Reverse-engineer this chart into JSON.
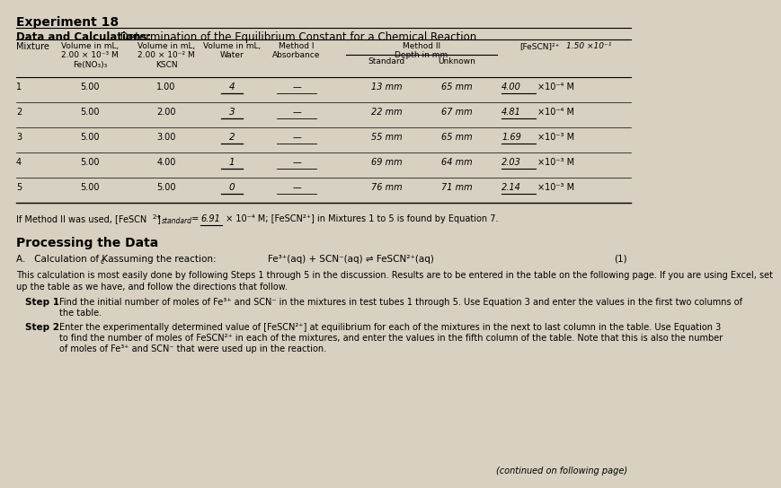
{
  "bg_color": "#d8d0c0",
  "title_exp": "Experiment 18",
  "title_bold": "Data and Calculations:",
  "title_rest": " Determination of the Equilibrium Constant for a Chemical Reaction",
  "col_headers": [
    "Mixture",
    "Volume in mL,\n2.00 × 10⁻³ M\nFe(NO₃)₃",
    "Volume in mL,\n2.00 × 10⁻² M\nKSCN",
    "Volume in mL,\nWater",
    "Method I\nAbsorbance",
    "Standard",
    "Unknown",
    "[FeSCN]²⁺"
  ],
  "method2_header": "Method II\nDepth in mm",
  "method2_note": "1.50 ×10⁻¹",
  "rows": [
    [
      "1",
      "5.00",
      "1.00",
      "4",
      "",
      "13 mm",
      "65 mm",
      "4.00",
      "×10⁻⁴ M"
    ],
    [
      "2",
      "5.00",
      "2.00",
      "3",
      "",
      "22 mm",
      "67 mm",
      "4.81",
      "×10⁻⁴ M"
    ],
    [
      "3",
      "5.00",
      "3.00",
      "2",
      "",
      "55 mm",
      "65 mm",
      "1.69",
      "×10⁻³ M"
    ],
    [
      "4",
      "5.00",
      "4.00",
      "1",
      "",
      "69 mm",
      "64 mm",
      "2.03",
      "×10⁻³ M"
    ],
    [
      "5",
      "5.00",
      "5.00",
      "0",
      "",
      "76 mm",
      "71 mm",
      "2.14",
      "×10⁻³ M"
    ]
  ],
  "std_note_pre": "If Method II was used, [FeSCN",
  "std_note_sup": "2+",
  "std_note_sub": "standard",
  "std_note_eq": " = ",
  "std_note_val": "6.91",
  "std_note_post": " × 10⁻⁴ M; [FeSCN²⁺] in Mixtures 1 to 5 is found by Equation 7.",
  "proc_title": "Processing the Data",
  "calc_pre": "A.   Calculation of K",
  "calc_sub": "c",
  "calc_post": " assuming the reaction:",
  "reaction": "Fe³⁺(aq) + SCN⁻(aq) ⇌ FeSCN²⁺(aq)",
  "reaction_num": "(1)",
  "para1_line1": "This calculation is most easily done by following Steps 1 through 5 in the discussion. Results are to be entered in the table on the following page. If you are using Excel, set",
  "para1_line2": "up the table as we have, and follow the directions that follow.",
  "step1_label": "Step 1",
  "step1_line1": "Find the initial number of moles of Fe³⁺ and SCN⁻ in the mixtures in test tubes 1 through 5. Use Equation 3 and enter the values in the first two columns of",
  "step1_line2": "the table.",
  "step2_label": "Step 2",
  "step2_line1": "Enter the experimentally determined value of [FeSCN²⁺] at equilibrium for each of the mixtures in the next to last column in the table. Use Equation 3",
  "step2_line2": "to find the number of moles of FeSCN²⁺ in each of the mixtures, and enter the values in the fifth column of the table. Note that this is also the number",
  "step2_line3": "of moles of Fe³⁺ and SCN⁻ that were used up in the reaction.",
  "footer": "(continued on following page)"
}
